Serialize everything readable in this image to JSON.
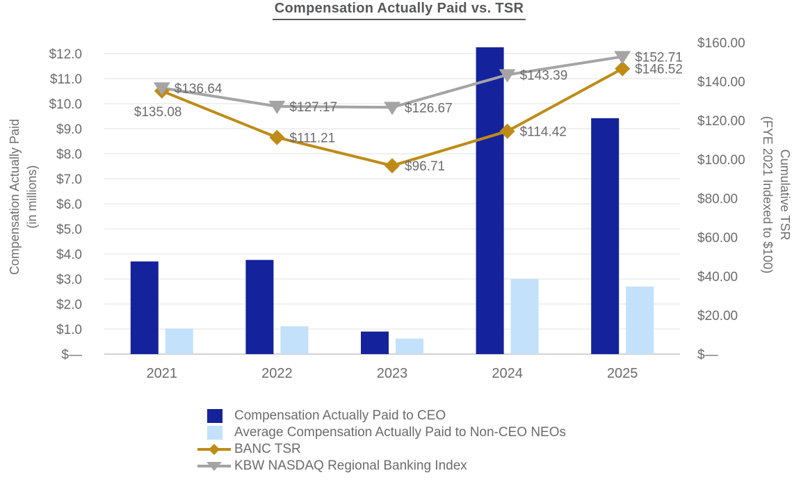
{
  "title": "Compensation Actually Paid vs. TSR",
  "chart_data": {
    "type": "combo-bar-line-dual-axis",
    "categories": [
      "2021",
      "2022",
      "2023",
      "2024",
      "2025"
    ],
    "bar_series": [
      {
        "name": "Compensation Actually Paid to CEO",
        "axis": "left",
        "color": "#14239B",
        "values": [
          3.7,
          3.76,
          0.9,
          12.25,
          9.42
        ]
      },
      {
        "name": "Average Compensation Actually Paid to Non-CEO NEOs",
        "axis": "left",
        "color": "#C3E1FA",
        "values": [
          1.02,
          1.11,
          0.62,
          3.0,
          2.7
        ]
      }
    ],
    "line_series": [
      {
        "name": "BANC TSR",
        "axis": "right",
        "color": "#BE8B17",
        "marker": "diamond",
        "values": [
          135.08,
          111.21,
          96.71,
          114.42,
          146.52
        ],
        "labels": [
          "$135.08",
          "$111.21",
          "$96.71",
          "$114.42",
          "$146.52"
        ],
        "label_side": [
          "below-left",
          "right",
          "right",
          "right",
          "right"
        ]
      },
      {
        "name": "KBW NASDAQ Regional Banking Index",
        "axis": "right",
        "color": "#A4A4A4",
        "marker": "triangle-down",
        "values": [
          136.64,
          127.17,
          126.67,
          143.39,
          152.71
        ],
        "labels": [
          "$136.64",
          "$127.17",
          "$126.67",
          "$143.39",
          "$152.71"
        ],
        "label_side": [
          "right",
          "right",
          "right",
          "right",
          "right"
        ]
      }
    ],
    "left_axis": {
      "title_line1": "Compensation Actually Paid",
      "title_line2": "(in millions)",
      "min": 0,
      "max": 12,
      "step": 1,
      "ticks": [
        "$12.0",
        "$11.0",
        "$10.0",
        "$9.0",
        "$8.0",
        "$7.0",
        "$6.0",
        "$5.0",
        "$4.0",
        "$3.0",
        "$2.0",
        "$1.0",
        "$—"
      ]
    },
    "right_axis": {
      "title_line1": "Cumulative TSR",
      "title_line2": "(FYE 2021 Indexed to $100)",
      "min": 0,
      "max": 160,
      "step": 20,
      "ticks": [
        "$160.00",
        "$140.00",
        "$120.00",
        "$100.00",
        "$80.00",
        "$60.00",
        "$40.00",
        "$20.00",
        "$—"
      ]
    },
    "grid": "horizontal-only",
    "legend_position": "bottom-left",
    "legend": [
      {
        "swatch": "square",
        "color": "#14239B",
        "label": "Compensation Actually Paid to CEO"
      },
      {
        "swatch": "square",
        "color": "#C3E1FA",
        "label": "Average Compensation Actually Paid to Non-CEO NEOs"
      },
      {
        "swatch": "line-diamond",
        "color": "#BE8B17",
        "label": "BANC TSR"
      },
      {
        "swatch": "line-triangle",
        "color": "#A4A4A4",
        "label": "KBW NASDAQ Regional Banking Index"
      }
    ],
    "colors": {
      "grid": "#E8E8E8",
      "axis_line": "#D2D2D2",
      "text": "#6B6B6B",
      "title": "#565759",
      "data_label": "#696969"
    }
  }
}
